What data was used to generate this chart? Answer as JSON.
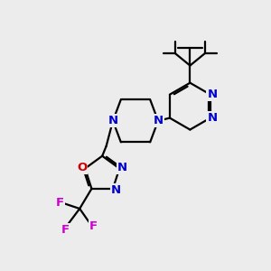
{
  "background_color": "#ececec",
  "bond_color": "black",
  "nitrogen_color": "#0000cc",
  "oxygen_color": "#cc0000",
  "fluorine_color": "#cc00cc",
  "line_width": 1.6,
  "figsize": [
    3.0,
    3.0
  ],
  "dpi": 100,
  "xlim": [
    0,
    10
  ],
  "ylim": [
    0,
    10
  ]
}
